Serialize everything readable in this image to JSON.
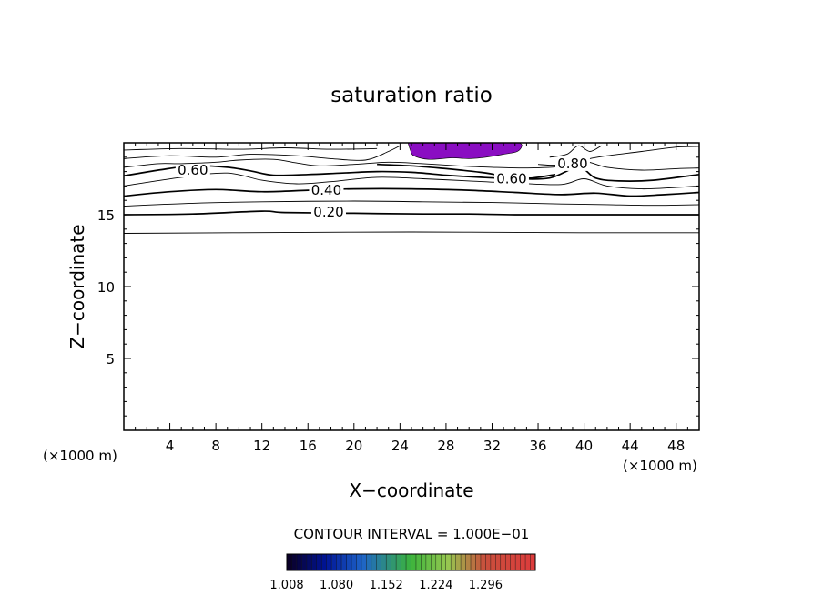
{
  "chart_data": {
    "type": "contour",
    "title": "saturation ratio",
    "xlabel": "X−coordinate",
    "ylabel": "Z−coordinate",
    "x_unit": "(×1000 m)",
    "z_unit": "(×1000 m)",
    "xlim": [
      0,
      50
    ],
    "ylim": [
      0,
      20
    ],
    "x_ticks": [
      4,
      8,
      12,
      16,
      20,
      24,
      28,
      32,
      36,
      40,
      44,
      48
    ],
    "y_ticks": [
      5,
      10,
      15
    ],
    "contour_interval_text": "CONTOUR INTERVAL = 1.000E−01",
    "contours": [
      {
        "level": "0.10",
        "points": [
          [
            0,
            13.7
          ],
          [
            10,
            13.75
          ],
          [
            25,
            13.8
          ],
          [
            40,
            13.75
          ],
          [
            50,
            13.75
          ]
        ]
      },
      {
        "level": "0.20",
        "label": "0.20",
        "label_at": [
          17.8,
          15.2
        ],
        "heavy": true,
        "points": [
          [
            0,
            15.0
          ],
          [
            6,
            15.05
          ],
          [
            12,
            15.25
          ],
          [
            14,
            15.15
          ],
          [
            20,
            15.1
          ],
          [
            26,
            15.05
          ],
          [
            30,
            15.05
          ],
          [
            34,
            15.0
          ],
          [
            40,
            15.0
          ],
          [
            45,
            15.0
          ],
          [
            50,
            15.0
          ]
        ]
      },
      {
        "level": "0.30",
        "points": [
          [
            0,
            15.6
          ],
          [
            6,
            15.8
          ],
          [
            12,
            15.9
          ],
          [
            20,
            15.95
          ],
          [
            26,
            15.9
          ],
          [
            32,
            15.85
          ],
          [
            38,
            15.75
          ],
          [
            42,
            15.7
          ],
          [
            46,
            15.65
          ],
          [
            50,
            15.7
          ]
        ]
      },
      {
        "level": "0.40",
        "label": "0.40",
        "label_at": [
          17.6,
          16.7
        ],
        "heavy": true,
        "points": [
          [
            0,
            16.3
          ],
          [
            4,
            16.6
          ],
          [
            8,
            16.75
          ],
          [
            12,
            16.6
          ],
          [
            16,
            16.7
          ],
          [
            20,
            16.8
          ],
          [
            25,
            16.8
          ],
          [
            30,
            16.7
          ],
          [
            34,
            16.55
          ],
          [
            38,
            16.4
          ],
          [
            41,
            16.5
          ],
          [
            44,
            16.3
          ],
          [
            47,
            16.4
          ],
          [
            50,
            16.55
          ]
        ]
      },
      {
        "level": "0.50",
        "points": [
          [
            0,
            17.0
          ],
          [
            5,
            17.6
          ],
          [
            9,
            17.9
          ],
          [
            12,
            17.4
          ],
          [
            15,
            17.15
          ],
          [
            18,
            17.3
          ],
          [
            22,
            17.6
          ],
          [
            26,
            17.5
          ],
          [
            30,
            17.35
          ],
          [
            34,
            17.2
          ],
          [
            38,
            17.1
          ],
          [
            40,
            17.5
          ],
          [
            42,
            17.0
          ],
          [
            45,
            16.8
          ],
          [
            48,
            16.9
          ],
          [
            50,
            17.0
          ]
        ]
      },
      {
        "level": "0.60",
        "label": "0.60",
        "label_at": [
          6.0,
          18.1
        ],
        "heavy": true,
        "points": [
          [
            0,
            17.7
          ],
          [
            3,
            18.1
          ],
          [
            6,
            18.4
          ],
          [
            9,
            18.3
          ],
          [
            11,
            18.05
          ],
          [
            13,
            17.75
          ],
          [
            16,
            17.8
          ],
          [
            19,
            17.9
          ],
          [
            22,
            18.0
          ],
          [
            25,
            17.95
          ],
          [
            28,
            17.75
          ],
          [
            31,
            17.6
          ],
          [
            34,
            17.5
          ],
          [
            37,
            17.55
          ],
          [
            39.5,
            18.3
          ],
          [
            41,
            17.55
          ],
          [
            43,
            17.35
          ],
          [
            46,
            17.4
          ],
          [
            50,
            17.8
          ]
        ]
      },
      {
        "level": "0.60",
        "label": "0.60",
        "label_at": [
          33.7,
          17.5
        ],
        "heavy": true,
        "points": [
          [
            22,
            18.5
          ],
          [
            25,
            18.4
          ],
          [
            28,
            18.2
          ],
          [
            31,
            17.95
          ],
          [
            33,
            17.7
          ],
          [
            34.5,
            17.6
          ],
          [
            35.5,
            17.55
          ],
          [
            37.5,
            17.8
          ]
        ]
      },
      {
        "level": "0.70",
        "points": [
          [
            0,
            18.3
          ],
          [
            3,
            18.55
          ],
          [
            5,
            18.55
          ],
          [
            8,
            18.65
          ],
          [
            10,
            18.8
          ],
          [
            13,
            18.85
          ],
          [
            15,
            18.6
          ],
          [
            17,
            18.4
          ],
          [
            20,
            18.5
          ],
          [
            23,
            18.65
          ],
          [
            26,
            18.55
          ],
          [
            29,
            18.4
          ],
          [
            32,
            18.3
          ],
          [
            35,
            18.25
          ],
          [
            38,
            18.35
          ],
          [
            40,
            18.7
          ],
          [
            42,
            18.3
          ],
          [
            45,
            18.1
          ],
          [
            48,
            18.2
          ],
          [
            50,
            18.25
          ]
        ]
      },
      {
        "level": "0.80",
        "points": [
          [
            0,
            18.9
          ],
          [
            4,
            19.1
          ],
          [
            8,
            19.0
          ],
          [
            11,
            19.2
          ],
          [
            15,
            19.1
          ],
          [
            18,
            18.9
          ],
          [
            21,
            18.8
          ],
          [
            23,
            19.4
          ],
          [
            24,
            19.8
          ]
        ]
      },
      {
        "level": "0.80",
        "label": "0.80",
        "label_at": [
          39.0,
          18.55
        ],
        "points": [
          [
            36,
            18.5
          ],
          [
            37.5,
            18.45
          ],
          [
            39,
            18.7
          ],
          [
            40.5,
            18.9
          ],
          [
            42,
            19.1
          ],
          [
            45,
            19.4
          ],
          [
            48,
            19.7
          ],
          [
            50,
            19.75
          ]
        ]
      },
      {
        "level": "0.90",
        "points": [
          [
            0,
            19.5
          ],
          [
            5,
            19.6
          ],
          [
            10,
            19.55
          ],
          [
            14,
            19.65
          ],
          [
            18,
            19.55
          ],
          [
            22,
            19.6
          ]
        ]
      },
      {
        "level": "0.90",
        "points": [
          [
            37,
            19.0
          ],
          [
            38.5,
            19.2
          ],
          [
            39.5,
            19.8
          ],
          [
            40.5,
            19.4
          ],
          [
            41.5,
            19.8
          ]
        ]
      }
    ],
    "shaded_regions": [
      {
        "range": "1.008 – 1.080",
        "color": "#8a0ec2",
        "points": [
          [
            24.7,
            20
          ],
          [
            24.9,
            19.5
          ],
          [
            25.2,
            19.1
          ],
          [
            26.5,
            18.85
          ],
          [
            28.5,
            18.95
          ],
          [
            30,
            18.9
          ],
          [
            31.5,
            19.0
          ],
          [
            33,
            19.2
          ],
          [
            34.2,
            19.4
          ],
          [
            34.6,
            19.8
          ],
          [
            34.4,
            20
          ]
        ]
      }
    ],
    "colorbar": {
      "labels": [
        "1.008",
        "1.080",
        "1.152",
        "1.224",
        "1.296"
      ],
      "min": 1.008,
      "max": 1.368
    }
  }
}
